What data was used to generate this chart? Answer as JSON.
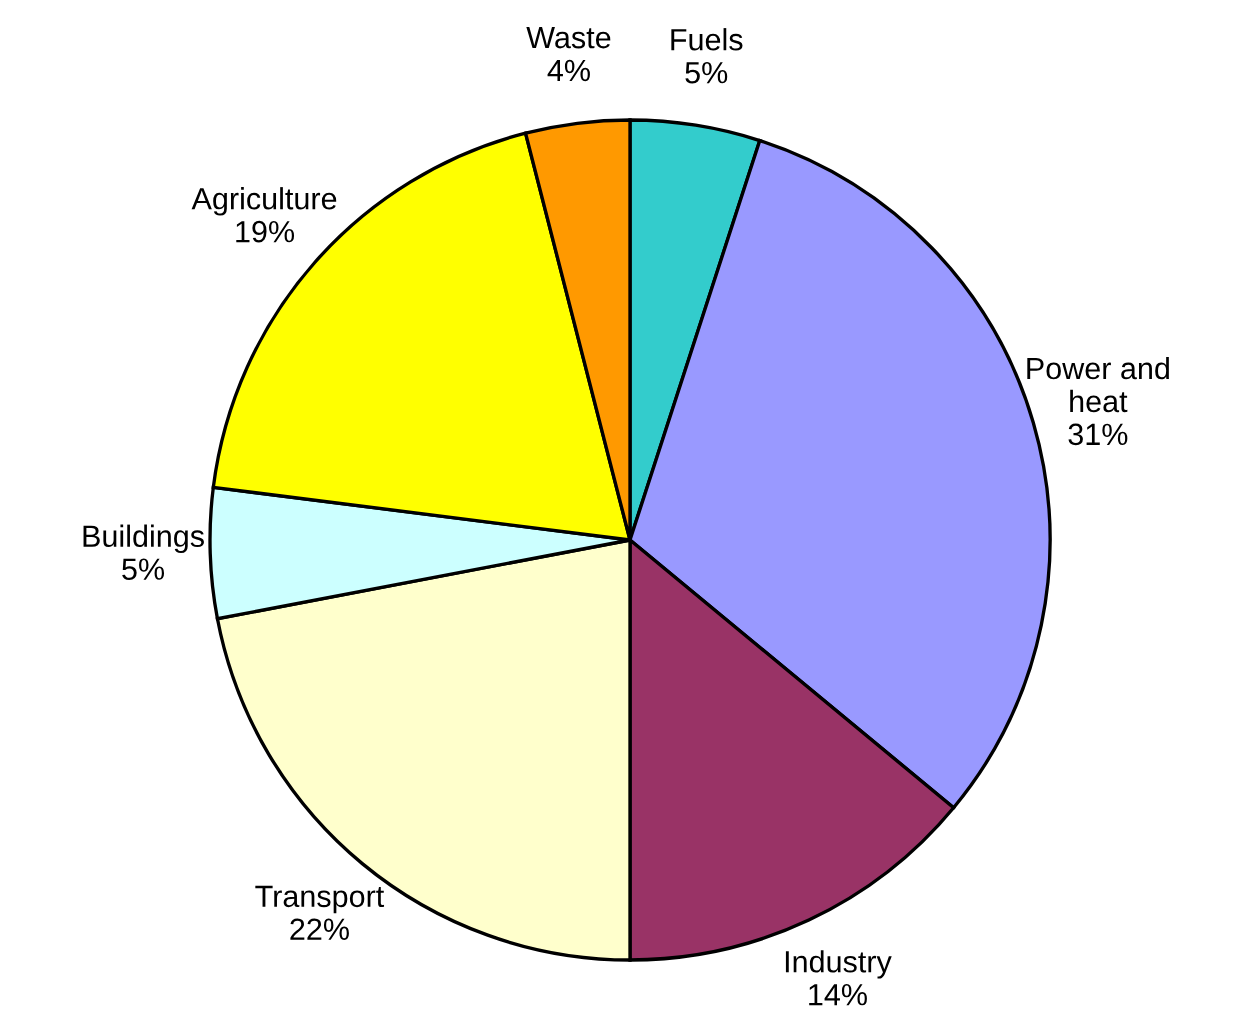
{
  "chart_data": {
    "type": "pie",
    "categories": [
      "Fuels",
      "Power and\nheat",
      "Industry",
      "Transport",
      "Buildings",
      "Agriculture",
      "Waste"
    ],
    "values": [
      5,
      31,
      14,
      22,
      5,
      19,
      4
    ],
    "value_labels": [
      "5%",
      "31%",
      "14%",
      "22%",
      "5%",
      "19%",
      "4%"
    ],
    "colors": [
      "#33cccc",
      "#9999ff",
      "#993366",
      "#ffffcc",
      "#ccffff",
      "#ffff00",
      "#ff9900"
    ]
  }
}
